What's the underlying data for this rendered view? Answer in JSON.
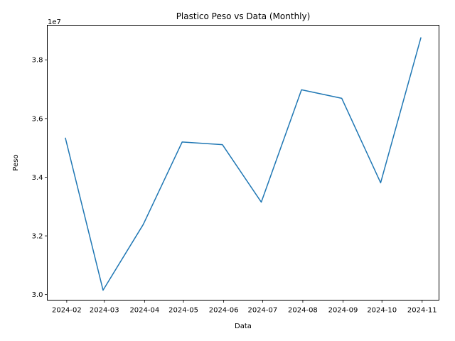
{
  "chart_data": {
    "type": "line",
    "title": "Plastico Peso vs Data (Monthly)",
    "xlabel": "Data",
    "ylabel": "Peso",
    "y_offset_label": "1e7",
    "x": [
      "2024-02",
      "2024-03",
      "2024-04",
      "2024-05",
      "2024-06",
      "2024-07",
      "2024-08",
      "2024-09",
      "2024-10",
      "2024-11"
    ],
    "x_dates": [
      "2024-01-31",
      "2024-02-29",
      "2024-03-31",
      "2024-04-30",
      "2024-05-31",
      "2024-06-30",
      "2024-07-31",
      "2024-08-31",
      "2024-09-30",
      "2024-10-31"
    ],
    "series": [
      {
        "values": [
          35330000,
          30150000,
          32390000,
          35200000,
          35110000,
          33150000,
          36980000,
          36690000,
          33810000,
          38750000
        ],
        "color": "#1f77b4"
      }
    ],
    "xticks": [
      "2024-02",
      "2024-03",
      "2024-04",
      "2024-05",
      "2024-06",
      "2024-07",
      "2024-08",
      "2024-09",
      "2024-10",
      "2024-11"
    ],
    "xtick_dates": [
      "2024-02-01",
      "2024-03-01",
      "2024-04-01",
      "2024-05-01",
      "2024-06-01",
      "2024-07-01",
      "2024-08-01",
      "2024-09-01",
      "2024-10-01",
      "2024-11-01"
    ],
    "yticks": [
      30000000,
      32000000,
      34000000,
      36000000,
      38000000
    ],
    "ytick_labels": [
      "3.0",
      "3.2",
      "3.4",
      "3.6",
      "3.8"
    ],
    "ylim": [
      29810000,
      39180000
    ],
    "xlim": [
      "2024-01-17",
      "2024-11-14"
    ],
    "grid": false,
    "legend": "none"
  }
}
